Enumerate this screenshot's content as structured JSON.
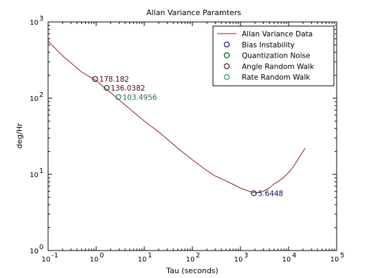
{
  "chart_data": {
    "type": "line",
    "title": "Allan Variance Paramters",
    "xlabel": "Tau (seconds)",
    "ylabel": "deg/Hr",
    "x_scale": "log",
    "y_scale": "log",
    "xlim": [
      0.1,
      100000
    ],
    "ylim": [
      1,
      1000
    ],
    "x_ticks": [
      {
        "base": "10",
        "exp": "-1"
      },
      {
        "base": "10",
        "exp": "0"
      },
      {
        "base": "10",
        "exp": "1"
      },
      {
        "base": "10",
        "exp": "2"
      },
      {
        "base": "10",
        "exp": "3"
      },
      {
        "base": "10",
        "exp": "4"
      },
      {
        "base": "10",
        "exp": "5"
      }
    ],
    "y_ticks": [
      {
        "base": "10",
        "exp": "0"
      },
      {
        "base": "10",
        "exp": "1"
      },
      {
        "base": "10",
        "exp": "2"
      },
      {
        "base": "10",
        "exp": "3"
      }
    ],
    "grid": false,
    "legend_position": "top-right",
    "series": [
      {
        "name": "Allan Variance Data",
        "style": "line",
        "color": "#8b1a1a",
        "x": [
          0.1,
          0.2,
          0.5,
          1,
          2,
          5,
          10,
          20,
          50,
          100,
          200,
          300,
          500,
          700,
          1000,
          1500,
          2000,
          2500,
          3000,
          4000,
          5000,
          6000,
          8000,
          10000,
          13000,
          16000,
          22000
        ],
        "y": [
          560,
          360,
          220,
          170,
          118,
          72,
          50,
          36,
          22,
          15.5,
          11.2,
          9.5,
          8.2,
          7.4,
          6.6,
          6.0,
          5.7,
          5.8,
          6.0,
          6.6,
          7.5,
          8.0,
          9.2,
          10.5,
          13,
          16,
          22
        ]
      },
      {
        "name": "Bias Instability",
        "style": "marker",
        "color": "#0a0a5e",
        "x": [
          1900
        ],
        "y": [
          5.6448
        ]
      },
      {
        "name": "Quantization Noise",
        "style": "marker",
        "color": "#004d00",
        "x": [
          1.65
        ],
        "y": [
          136.0382
        ]
      },
      {
        "name": "Angle Random Walk",
        "style": "marker",
        "color": "#3a1010",
        "x": [
          0.95
        ],
        "y": [
          178.182
        ]
      },
      {
        "name": "Rate Random Walk",
        "style": "marker",
        "color": "#1a8a73",
        "x": [
          2.9
        ],
        "y": [
          103.4956
        ]
      }
    ],
    "annotations": [
      {
        "text": "178.182",
        "x": 0.95,
        "y": 178.182,
        "color": "#3a1010"
      },
      {
        "text": "136.0382",
        "x": 1.65,
        "y": 136.0382,
        "color": "#3a1010"
      },
      {
        "text": "103.4956",
        "x": 2.9,
        "y": 103.4956,
        "color": "#1a6b5a"
      },
      {
        "text": "5.6448",
        "x": 1900,
        "y": 5.6448,
        "color": "#0a0a5e"
      }
    ]
  }
}
